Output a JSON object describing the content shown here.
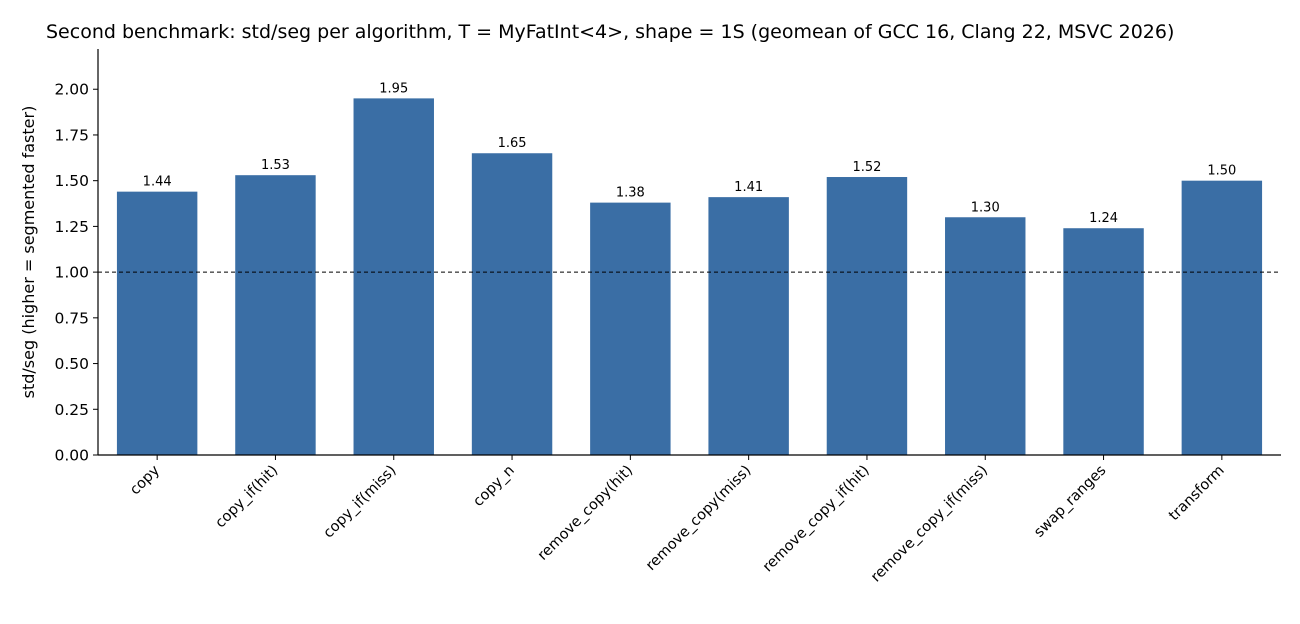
{
  "chart_data": {
    "type": "bar",
    "title": "Second benchmark: std/seg per algorithm, T = MyFatInt<4>, shape = 1S (geomean of GCC 16, Clang 22, MSVC 2026)",
    "xlabel": "",
    "ylabel": "std/seg  (higher = segmented faster)",
    "ylim": [
      0,
      2.22
    ],
    "yticks": [
      "0.00",
      "0.25",
      "0.50",
      "0.75",
      "1.00",
      "1.25",
      "1.50",
      "1.75",
      "2.00"
    ],
    "reference_line": 1.0,
    "categories": [
      "copy",
      "copy_if(hit)",
      "copy_if(miss)",
      "copy_n",
      "remove_copy(hit)",
      "remove_copy(miss)",
      "remove_copy_if(hit)",
      "remove_copy_if(miss)",
      "swap_ranges",
      "transform"
    ],
    "values": [
      1.44,
      1.53,
      1.95,
      1.65,
      1.38,
      1.41,
      1.52,
      1.3,
      1.24,
      1.5
    ],
    "value_labels": [
      "1.44",
      "1.53",
      "1.95",
      "1.65",
      "1.38",
      "1.41",
      "1.52",
      "1.30",
      "1.24",
      "1.50"
    ],
    "bar_color": "#3a6ea5",
    "grid": false,
    "legend": "none"
  }
}
